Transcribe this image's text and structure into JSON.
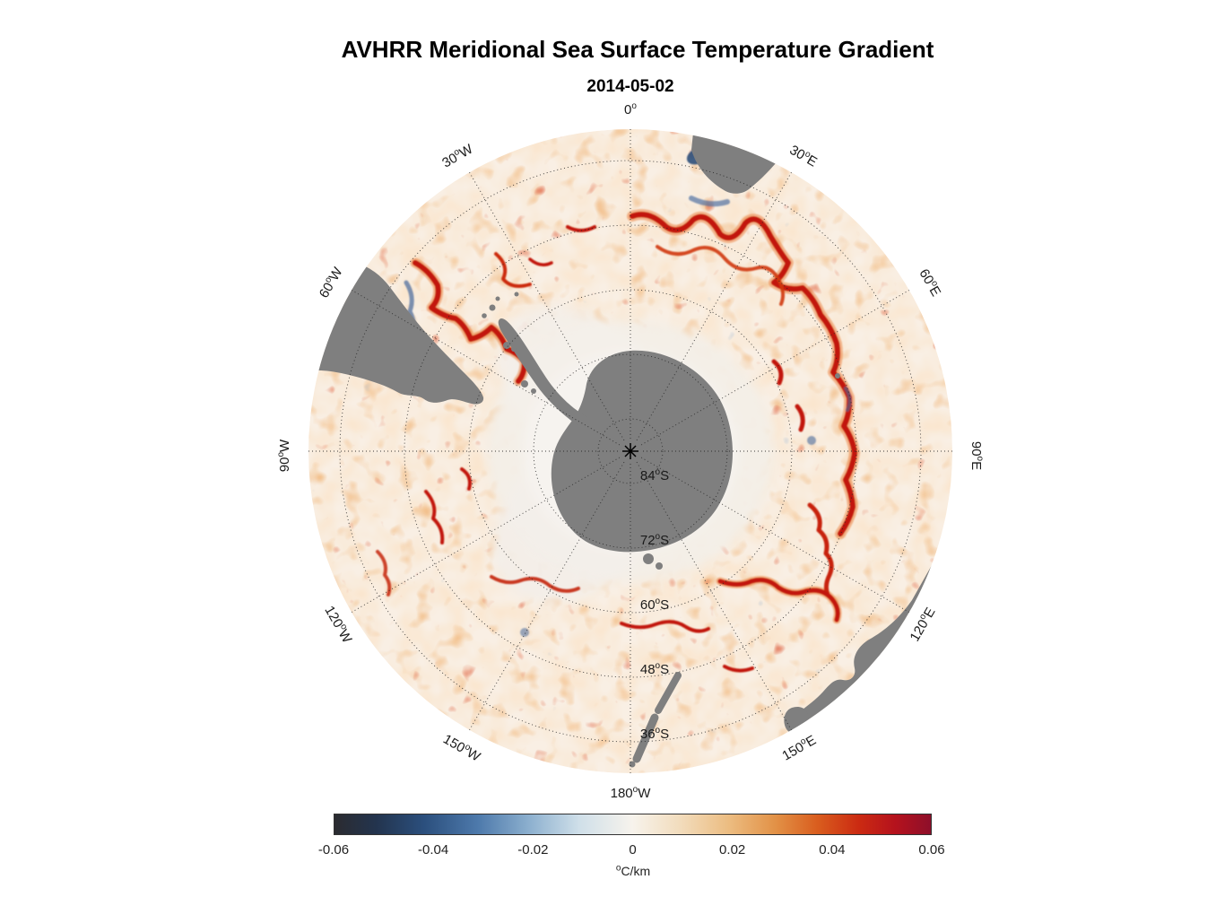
{
  "title": "AVHRR Meridional Sea Surface Temperature Gradient",
  "subtitle": "2014-05-02",
  "chart_data": {
    "type": "heatmap",
    "projection": "south_polar_stereographic",
    "title": "AVHRR Meridional Sea Surface Temperature Gradient",
    "date": "2014-05-02",
    "units": "°C/km",
    "value_range": [
      -0.06,
      0.06
    ],
    "land_color": "#7f7f7f",
    "ocean_base_color": "#f8efe4",
    "colorbar": {
      "min": -0.06,
      "max": 0.06,
      "label": "°C/km",
      "ticks": [
        "-0.06",
        "-0.04",
        "-0.02",
        "0",
        "0.02",
        "0.04",
        "0.06"
      ],
      "stops": [
        {
          "pos": 0,
          "color": "#2b2b30"
        },
        {
          "pos": 7,
          "color": "#23344e"
        },
        {
          "pos": 15,
          "color": "#2b4f7d"
        },
        {
          "pos": 24,
          "color": "#4d79ab"
        },
        {
          "pos": 33,
          "color": "#8fb2d0"
        },
        {
          "pos": 41,
          "color": "#cfdfe9"
        },
        {
          "pos": 50,
          "color": "#f7f3ec"
        },
        {
          "pos": 58,
          "color": "#f2dcbc"
        },
        {
          "pos": 66,
          "color": "#ecbd82"
        },
        {
          "pos": 74,
          "color": "#e29146"
        },
        {
          "pos": 81,
          "color": "#d95d1e"
        },
        {
          "pos": 88,
          "color": "#cb2a12"
        },
        {
          "pos": 94,
          "color": "#b5121d"
        },
        {
          "pos": 100,
          "color": "#8e0f2a"
        }
      ]
    },
    "graticule": {
      "lon_labels": [
        {
          "text": "0°",
          "deg": 0
        },
        {
          "text": "30°E",
          "deg": 30
        },
        {
          "text": "60°E",
          "deg": 60
        },
        {
          "text": "90°E",
          "deg": 90
        },
        {
          "text": "120°E",
          "deg": 120
        },
        {
          "text": "150°E",
          "deg": 150
        },
        {
          "text": "180°W",
          "deg": 180
        },
        {
          "text": "150°W",
          "deg": -150
        },
        {
          "text": "120°W",
          "deg": -120
        },
        {
          "text": "90°W",
          "deg": -90
        },
        {
          "text": "60°W",
          "deg": -60
        },
        {
          "text": "30°W",
          "deg": -30
        }
      ],
      "lat_labels": [
        {
          "text": "84°S",
          "lat_s": 84
        },
        {
          "text": "72°S",
          "lat_s": 72
        },
        {
          "text": "60°S",
          "lat_s": 60
        },
        {
          "text": "48°S",
          "lat_s": 48
        },
        {
          "text": "36°S",
          "lat_s": 36
        }
      ],
      "outer_lat_s": 30,
      "lon_spacing_deg": 30,
      "lat_spacing_deg": 12
    }
  }
}
